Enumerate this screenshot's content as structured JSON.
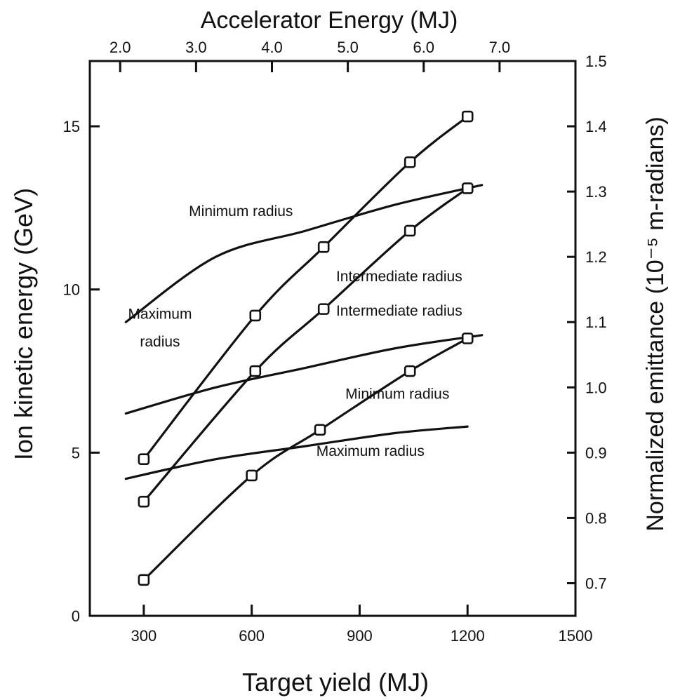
{
  "chart_data": {
    "type": "line",
    "title": "",
    "xlabel": "Target yield (MJ)",
    "ylabel": "Ion kinetic energy (GeV)",
    "top_xlabel": "Accelerator Energy (MJ)",
    "right_ylabel": "Normalized emittance (10⁻⁵ m-radians)",
    "xlim": [
      150,
      1500
    ],
    "ylim": [
      0,
      17
    ],
    "top_xlim": [
      1.6,
      8.0
    ],
    "right_ylim": [
      0.65,
      1.5
    ],
    "x_ticks": [
      300,
      600,
      900,
      1200,
      1500
    ],
    "x_tick_labels": [
      "300",
      "600",
      "900",
      "1200",
      "1500"
    ],
    "y_ticks": [
      0,
      5,
      10,
      15
    ],
    "y_tick_labels": [
      "0",
      "5",
      "10",
      "15"
    ],
    "top_ticks": [
      2.0,
      3.0,
      4.0,
      5.0,
      6.0,
      7.0
    ],
    "top_tick_labels": [
      "2.0",
      "3.0",
      "4.0",
      "5.0",
      "6.0",
      "7.0"
    ],
    "right_ticks": [
      0.7,
      0.8,
      0.9,
      1.0,
      1.1,
      1.2,
      1.3,
      1.4,
      1.5
    ],
    "right_tick_labels": [
      "0.7",
      "0.8",
      "0.9",
      "1.0",
      "1.1",
      "1.2",
      "1.3",
      "1.4",
      "1.5"
    ],
    "grid": false,
    "series": [
      {
        "axis": "energy",
        "marker": "square",
        "x": [
          300,
          610,
          800,
          1040,
          1200
        ],
        "y": [
          4.8,
          9.2,
          11.3,
          13.9,
          15.3
        ]
      },
      {
        "axis": "energy",
        "marker": "square",
        "x": [
          300,
          610,
          800,
          1040,
          1200
        ],
        "y": [
          3.5,
          7.5,
          9.4,
          11.8,
          13.1
        ]
      },
      {
        "axis": "energy",
        "marker": "square",
        "x": [
          300,
          600,
          790,
          1040,
          1200
        ],
        "y": [
          1.1,
          4.3,
          5.7,
          7.5,
          8.5
        ]
      },
      {
        "axis": "emittance",
        "marker": "none",
        "x": [
          250,
          500,
          750,
          1000,
          1240
        ],
        "y": [
          1.1,
          1.2,
          1.24,
          1.28,
          1.31
        ]
      },
      {
        "axis": "emittance",
        "marker": "none",
        "x": [
          250,
          500,
          750,
          1000,
          1240
        ],
        "y": [
          0.96,
          1.0,
          1.03,
          1.06,
          1.08
        ]
      },
      {
        "axis": "emittance",
        "marker": "none",
        "x": [
          250,
          500,
          750,
          1000,
          1200
        ],
        "y": [
          0.86,
          0.89,
          0.91,
          0.93,
          0.94
        ]
      }
    ],
    "annotations": [
      {
        "text": "Minimum radius",
        "x": 570,
        "y": 12.25
      },
      {
        "text": "Maximum",
        "x": 345,
        "y": 9.1
      },
      {
        "text": "radius",
        "x": 345,
        "y": 8.25
      },
      {
        "text": "Intermediate radius",
        "x": 1010,
        "y": 10.25
      },
      {
        "text": "Intermediate radius",
        "x": 1010,
        "y": 9.2
      },
      {
        "text": "Minimum radius",
        "x": 1005,
        "y": 6.65
      },
      {
        "text": "Maximum radius",
        "x": 930,
        "y": 4.9
      }
    ]
  }
}
